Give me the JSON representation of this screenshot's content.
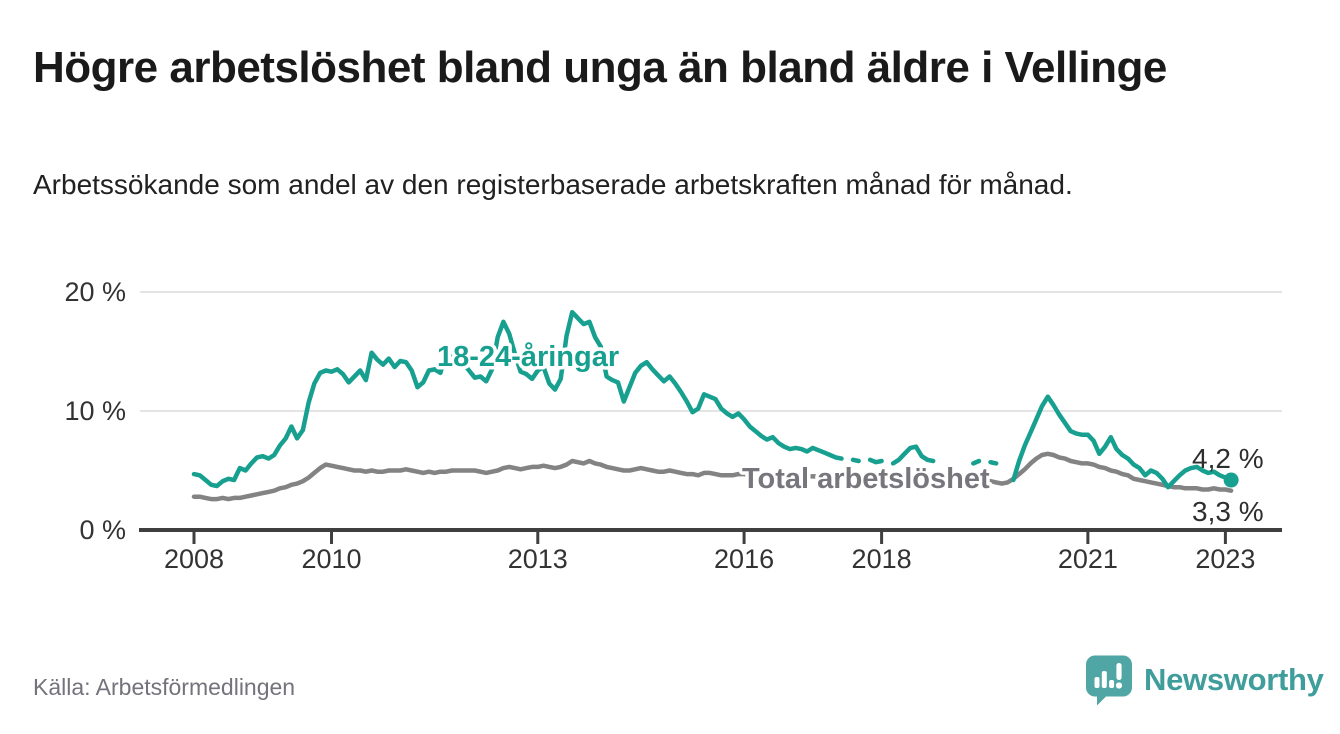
{
  "title": "Högre arbetslöshet bland unga än bland äldre i Vellinge",
  "subtitle": "Arbetssökande som andel av den registerbaserade arbetskraften månad för månad.",
  "source": "Källa: Arbetsförmedlingen",
  "branding": {
    "name": "Newsworthy",
    "logo_color": "#4fa6a4",
    "wordmark_color": "#3f9d9b"
  },
  "chart_data": {
    "type": "line",
    "unit": "%",
    "x_range": "2008-01 to 2023-02",
    "x_points_per_year": 12,
    "ylim": [
      0,
      21.5
    ],
    "grid": true,
    "style": {
      "grid_color": "#dcdcdc",
      "axis_color": "#3f3f3f",
      "background": "#ffffff"
    },
    "y_axis": {
      "ticks": [
        {
          "value": 0,
          "label": "0 %"
        },
        {
          "value": 10,
          "label": "10 %"
        },
        {
          "value": 20,
          "label": "20 %"
        }
      ]
    },
    "x_axis": {
      "ticks": [
        {
          "year": 2008,
          "label": "2008"
        },
        {
          "year": 2010,
          "label": "2010"
        },
        {
          "year": 2013,
          "label": "2013"
        },
        {
          "year": 2016,
          "label": "2016"
        },
        {
          "year": 2018,
          "label": "2018"
        },
        {
          "year": 2021,
          "label": "2021"
        },
        {
          "year": 2023,
          "label": "2023"
        }
      ]
    },
    "series": [
      {
        "name": "18-24-åringar",
        "color": "#17a08f",
        "label_color": "#17a08f",
        "end_label": "4,2 %",
        "end_value": 4.2,
        "end_dot": true,
        "values": [
          4.7,
          4.6,
          4.2,
          3.8,
          3.7,
          4.1,
          4.3,
          4.2,
          5.2,
          5.0,
          5.6,
          6.1,
          6.2,
          6.0,
          6.3,
          7.1,
          7.7,
          8.7,
          7.7,
          8.4,
          10.7,
          12.3,
          13.2,
          13.4,
          13.3,
          13.5,
          13.1,
          12.4,
          12.9,
          13.4,
          12.6,
          14.9,
          14.3,
          13.9,
          14.4,
          13.7,
          14.2,
          14.1,
          13.4,
          12.0,
          12.4,
          13.4,
          13.5,
          13.2,
          14.9,
          14.6,
          14.3,
          14.0,
          13.4,
          12.8,
          12.9,
          12.5,
          13.5,
          16.2,
          17.5,
          16.5,
          14.8,
          13.3,
          13.1,
          12.7,
          13.4,
          13.7,
          12.3,
          11.8,
          12.7,
          16.3,
          18.3,
          17.8,
          17.3,
          17.5,
          16.2,
          15.4,
          12.9,
          12.6,
          12.4,
          10.8,
          12.0,
          13.2,
          13.8,
          14.1,
          13.5,
          13.0,
          12.5,
          12.9,
          12.3,
          11.6,
          10.8,
          9.9,
          10.2,
          11.4,
          11.2,
          11.0,
          10.2,
          9.8,
          9.5,
          9.8,
          9.3,
          8.7,
          8.3,
          7.9,
          7.6,
          7.8,
          7.3,
          7.0,
          6.8,
          6.9,
          6.8,
          6.6,
          6.9,
          6.7,
          6.5,
          6.3,
          6.1,
          6.0,
          null,
          5.9,
          5.8,
          null,
          5.9,
          5.7,
          5.8,
          null,
          5.6,
          5.9,
          6.4,
          6.9,
          7.0,
          6.2,
          5.9,
          5.8,
          null,
          null,
          null,
          null,
          null,
          null,
          5.6,
          5.8,
          null,
          5.7,
          5.6,
          null,
          null,
          4.2,
          5.8,
          7.1,
          8.2,
          9.3,
          10.4,
          11.2,
          10.5,
          9.7,
          9.0,
          8.3,
          8.1,
          8.0,
          8.0,
          7.5,
          6.4,
          7.0,
          7.8,
          6.8,
          6.3,
          6.0,
          5.5,
          5.2,
          4.6,
          5.0,
          4.8,
          4.3,
          3.6,
          4.1,
          4.6,
          5.0,
          5.2,
          5.3,
          5.0,
          4.8,
          4.9,
          4.6,
          4.4,
          4.2
        ]
      },
      {
        "name": "Total arbetslöshet",
        "color": "#838383",
        "label_color": "#76767c",
        "end_label": "3,3 %",
        "end_value": 3.3,
        "end_dot": false,
        "values": [
          2.8,
          2.8,
          2.7,
          2.6,
          2.6,
          2.7,
          2.6,
          2.7,
          2.7,
          2.8,
          2.9,
          3.0,
          3.1,
          3.2,
          3.3,
          3.5,
          3.6,
          3.8,
          3.9,
          4.1,
          4.4,
          4.8,
          5.2,
          5.5,
          5.4,
          5.3,
          5.2,
          5.1,
          5.0,
          5.0,
          4.9,
          5.0,
          4.9,
          4.9,
          5.0,
          5.0,
          5.0,
          5.1,
          5.0,
          4.9,
          4.8,
          4.9,
          4.8,
          4.9,
          4.9,
          5.0,
          5.0,
          5.0,
          5.0,
          5.0,
          4.9,
          4.8,
          4.9,
          5.0,
          5.2,
          5.3,
          5.2,
          5.1,
          5.2,
          5.3,
          5.3,
          5.4,
          5.3,
          5.2,
          5.3,
          5.5,
          5.8,
          5.7,
          5.6,
          5.8,
          5.6,
          5.5,
          5.3,
          5.2,
          5.1,
          5.0,
          5.0,
          5.1,
          5.2,
          5.1,
          5.0,
          4.9,
          4.9,
          5.0,
          4.9,
          4.8,
          4.7,
          4.7,
          4.6,
          4.8,
          4.8,
          4.7,
          4.6,
          4.6,
          4.6,
          4.7,
          4.7,
          4.6,
          4.6,
          4.5,
          4.5,
          4.6,
          4.6,
          4.5,
          4.4,
          4.4,
          4.5,
          4.5,
          4.5,
          4.5,
          4.4,
          4.4,
          4.3,
          4.4,
          4.5,
          4.4,
          4.3,
          4.3,
          4.3,
          4.4,
          4.4,
          4.3,
          4.2,
          4.2,
          4.1,
          4.2,
          4.3,
          4.2,
          4.1,
          4.1,
          4.1,
          4.2,
          4.2,
          4.1,
          4.1,
          4.0,
          4.0,
          4.1,
          4.2,
          4.1,
          4.0,
          3.9,
          4.0,
          4.3,
          4.7,
          5.1,
          5.6,
          6.0,
          6.3,
          6.4,
          6.3,
          6.1,
          6.0,
          5.8,
          5.7,
          5.6,
          5.6,
          5.5,
          5.3,
          5.2,
          5.0,
          4.9,
          4.7,
          4.6,
          4.3,
          4.2,
          4.1,
          4.0,
          3.9,
          3.8,
          3.7,
          3.6,
          3.6,
          3.5,
          3.5,
          3.5,
          3.4,
          3.4,
          3.5,
          3.4,
          3.4,
          3.3
        ]
      }
    ]
  }
}
